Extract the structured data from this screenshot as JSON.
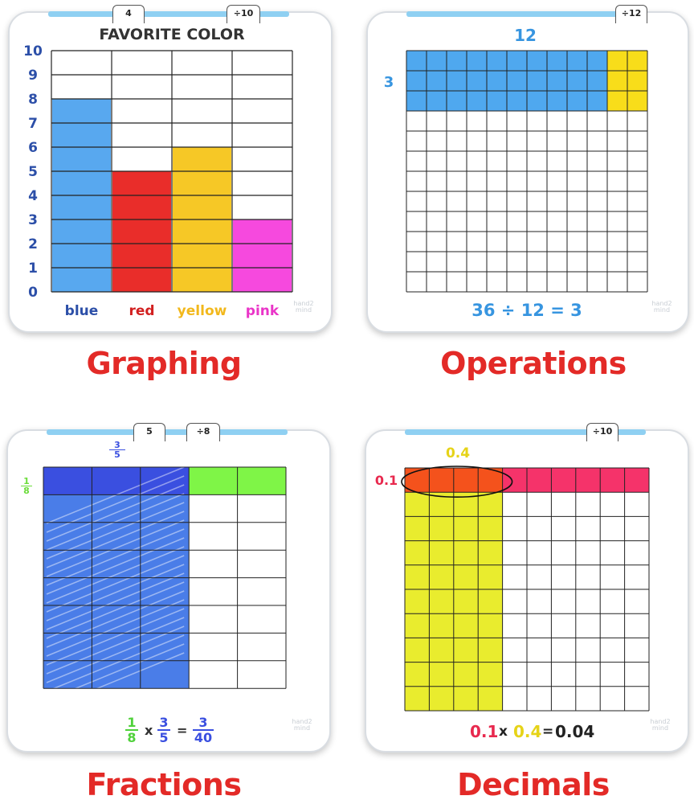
{
  "graphing": {
    "caption": "Graphing",
    "tabs": [
      "4",
      "÷10"
    ],
    "chart_data": {
      "type": "bar",
      "title": "FAVORITE COLOR",
      "categories": [
        "blue",
        "red",
        "yellow",
        "pink"
      ],
      "values": [
        8,
        5,
        6,
        3
      ],
      "colors": [
        "#4fa3ee",
        "#e8221f",
        "#f6c51a",
        "#f53fdc"
      ],
      "label_colors": [
        "#2c4fa8",
        "#d22020",
        "#f2b81c",
        "#ea35c8"
      ],
      "y_ticks": [
        "0",
        "1",
        "2",
        "3",
        "4",
        "5",
        "6",
        "7",
        "8",
        "9",
        "10"
      ],
      "ylim": [
        0,
        10
      ],
      "grid": true
    }
  },
  "operations": {
    "caption": "Operations",
    "tabs": [
      "÷12"
    ],
    "top_label": "12",
    "side_label": "3",
    "equation": "36 ÷ 12 = 3",
    "colors": {
      "blue": "#4fa8ef",
      "yellow": "#f8dd1a",
      "text": "#3795e0"
    }
  },
  "fractions": {
    "caption": "Fractions",
    "tabs": [
      "5",
      "÷8"
    ],
    "top_fraction": {
      "num": "3",
      "den": "5"
    },
    "side_fraction": {
      "num": "1",
      "den": "8"
    },
    "equation": {
      "f1": {
        "num": "1",
        "den": "8"
      },
      "op": "x",
      "f2": {
        "num": "3",
        "den": "5"
      },
      "eq": "=",
      "f3": {
        "num": "3",
        "den": "40"
      }
    },
    "colors": {
      "dark_blue": "#3a4fe0",
      "blue": "#4a7de8",
      "green": "#7ff547"
    }
  },
  "decimals": {
    "caption": "Decimals",
    "tabs": [
      "÷10"
    ],
    "top_label": "0.4",
    "side_label": "0.1",
    "equation": {
      "a": "0.1",
      "op": "x",
      "b": "0.4",
      "eq": "=",
      "result": "0.04"
    },
    "colors": {
      "yellow": "#e9ec2e",
      "pink": "#f5336a",
      "orange": "#f4521c",
      "a_text": "#e8294e",
      "b_text": "#e6d318"
    }
  },
  "logo_text": [
    "hand2",
    "mind"
  ]
}
